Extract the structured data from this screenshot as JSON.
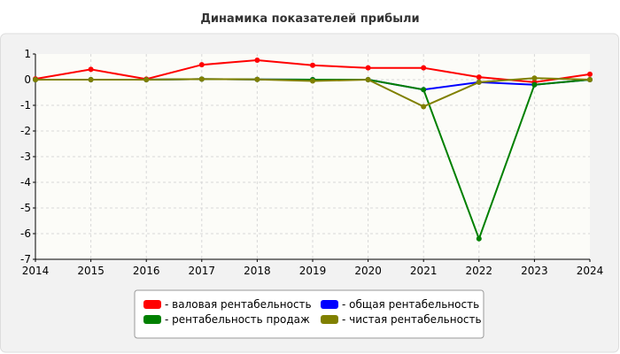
{
  "chart_data": {
    "type": "line",
    "title": "Динамика показателей прибыли",
    "xlabel": "",
    "ylabel": "",
    "x": [
      2014,
      2015,
      2016,
      2017,
      2018,
      2019,
      2020,
      2021,
      2022,
      2023,
      2024
    ],
    "ylim": [
      -7,
      1
    ],
    "yticks": [
      1,
      0,
      -1,
      -2,
      -3,
      -4,
      -5,
      -6,
      -7
    ],
    "grid": true,
    "legend_position": "bottom",
    "series": [
      {
        "name": "- валовая рентабельность",
        "color": "#ff0000",
        "values": [
          0.03,
          0.4,
          0.02,
          0.58,
          0.76,
          0.56,
          0.46,
          0.46,
          0.1,
          -0.1,
          0.21
        ]
      },
      {
        "name": "- общая рентабельность",
        "color": "#0000ff",
        "values": [
          0.0,
          0.0,
          0.0,
          0.02,
          0.01,
          0.0,
          0.0,
          -0.39,
          -0.1,
          -0.2,
          0.0
        ]
      },
      {
        "name": "- рентабельность продаж",
        "color": "#008000",
        "values": [
          0.0,
          0.0,
          0.0,
          0.02,
          0.01,
          0.0,
          0.0,
          -0.39,
          -6.2,
          -0.2,
          0.0
        ]
      },
      {
        "name": "- чистая рентабельность",
        "color": "#808000",
        "values": [
          0.0,
          0.0,
          0.0,
          0.02,
          0.01,
          -0.05,
          0.0,
          -1.05,
          -0.1,
          0.06,
          0.0
        ]
      }
    ]
  }
}
